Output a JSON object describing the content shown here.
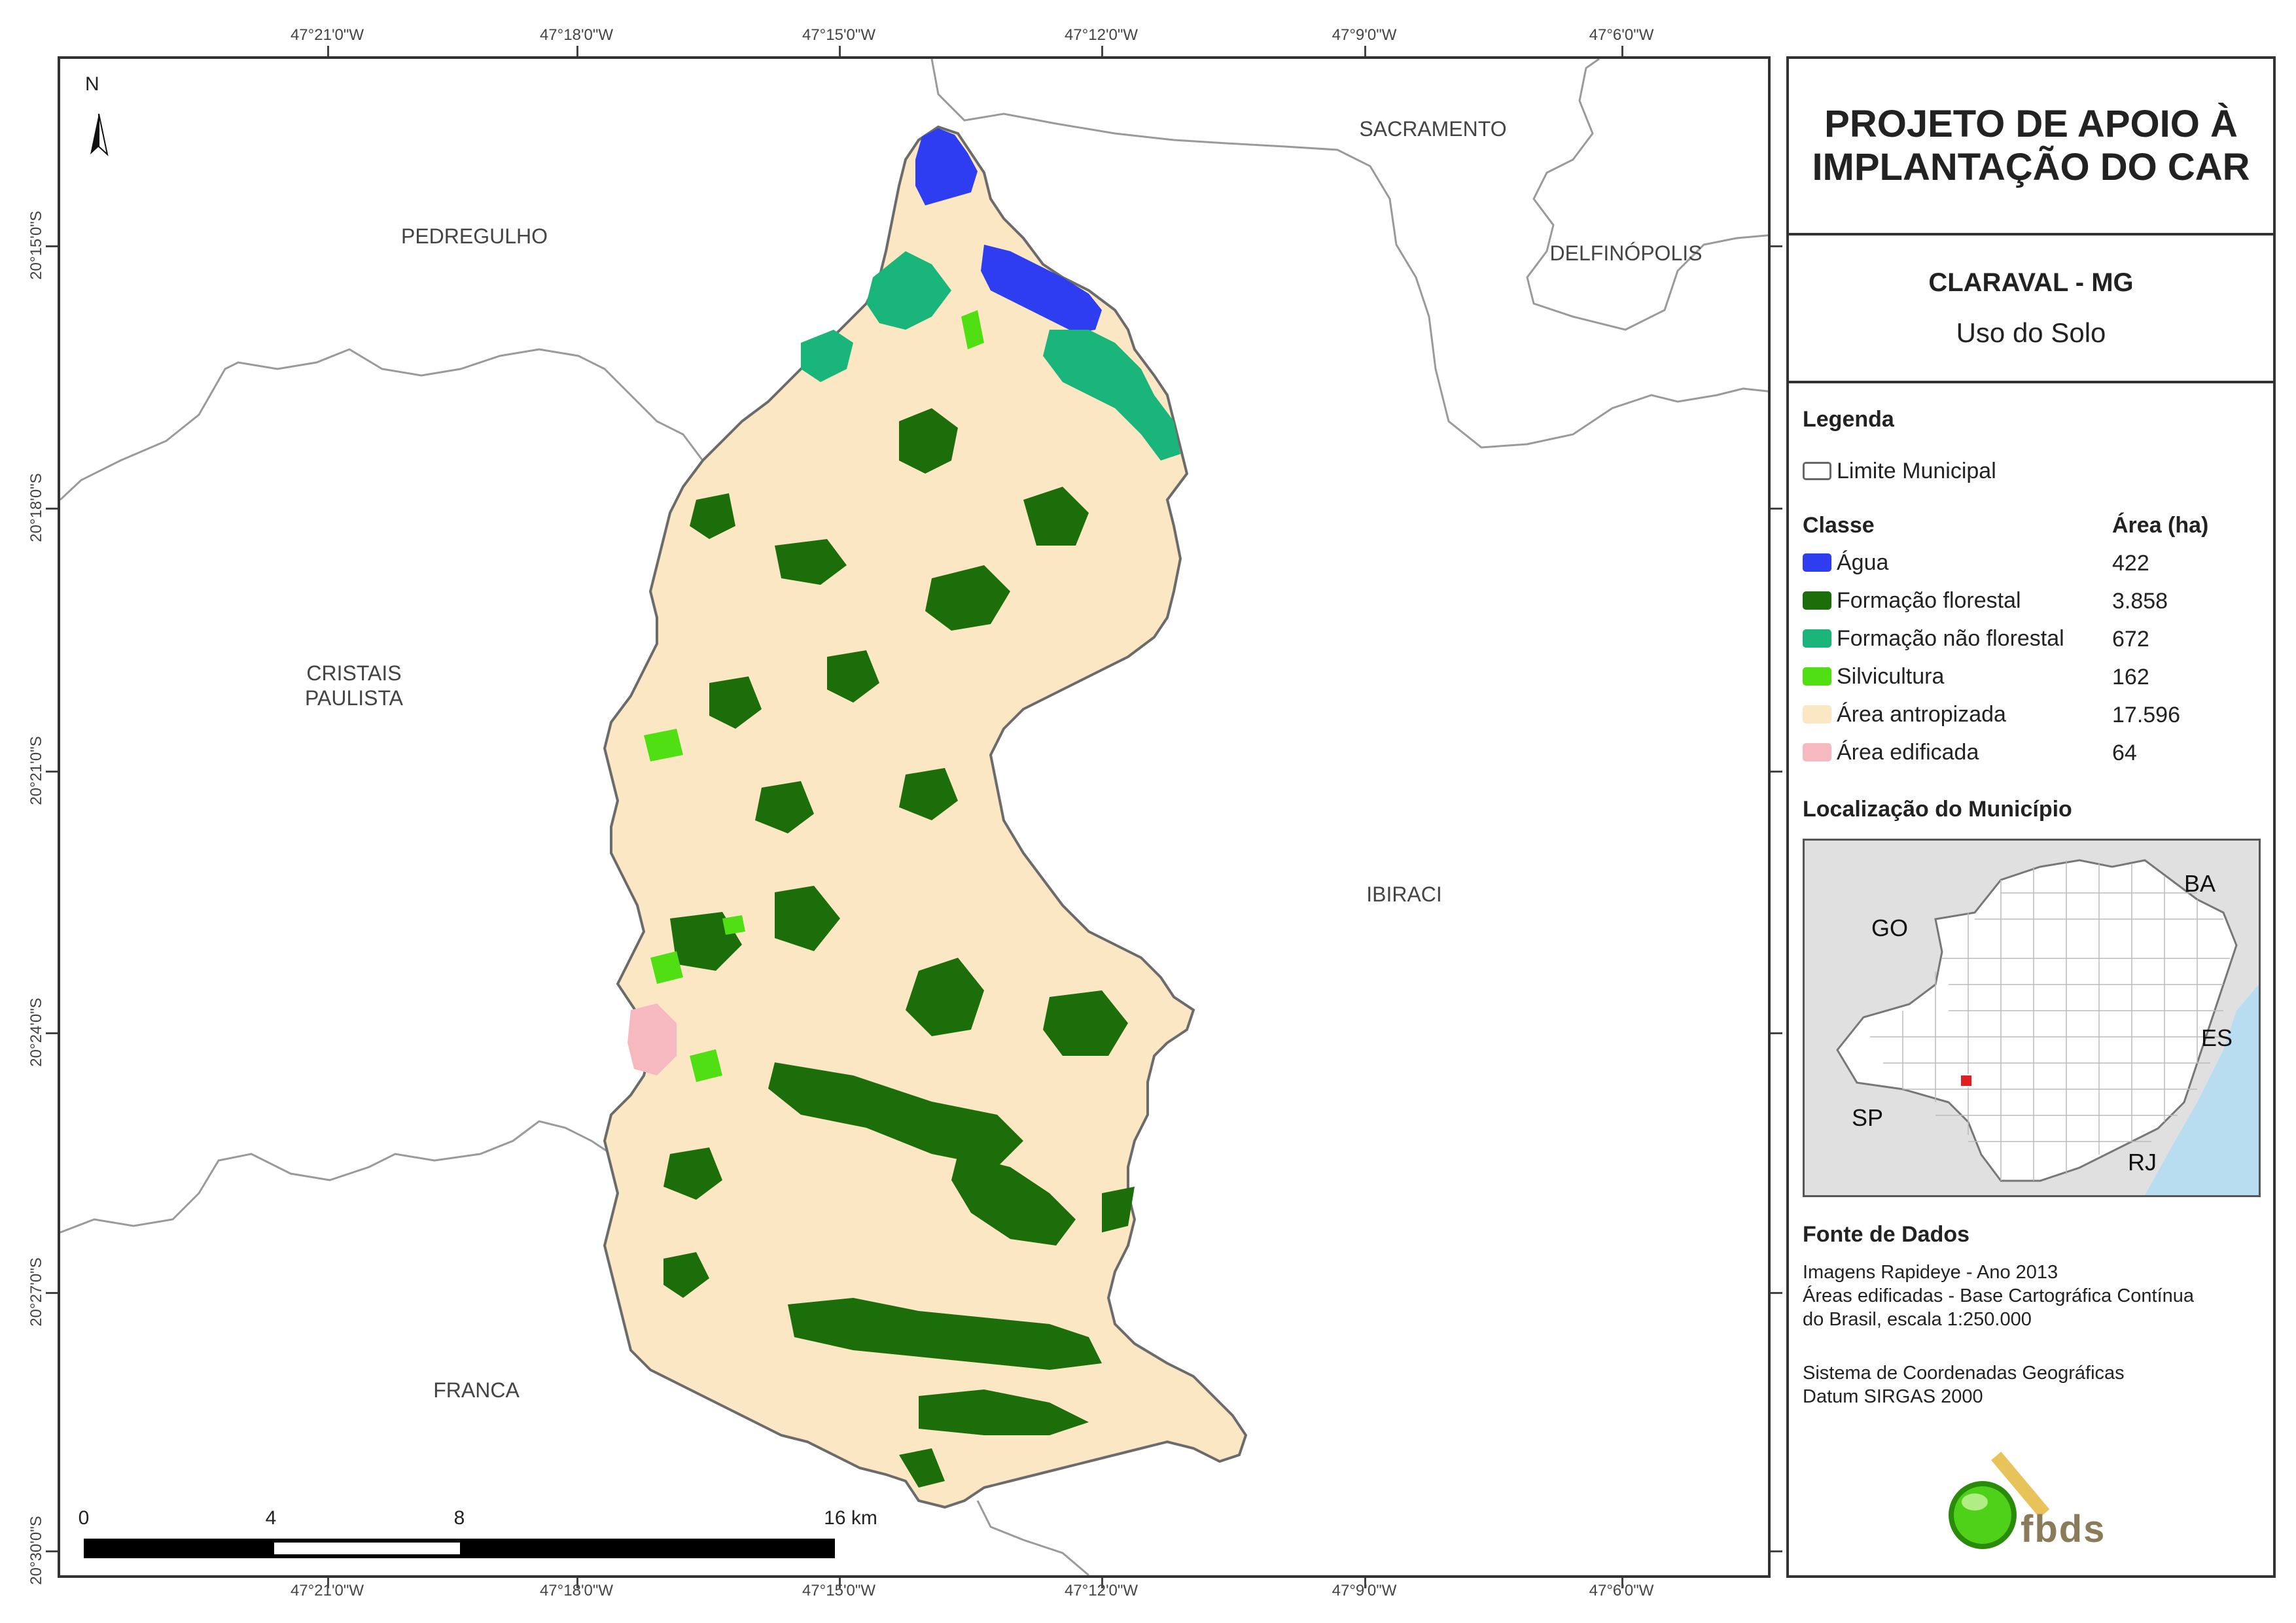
{
  "map": {
    "north_label": "N",
    "lon_labels": [
      "47°21'0\"W",
      "47°18'0\"W",
      "47°15'0\"W",
      "47°12'0\"W",
      "47°9'0\"W",
      "47°6'0\"W"
    ],
    "lat_labels": [
      "20°15'0\"S",
      "20°18'0\"S",
      "20°21'0\"S",
      "20°24'0\"S",
      "20°27'0\"S",
      "20°30'0\"S"
    ],
    "municipalities": {
      "sacramento": "SACRAMENTO",
      "pedregulho": "PEDREGULHO",
      "delfinopolis": "DELFINÓPOLIS",
      "cristais_1": "CRISTAIS",
      "cristais_2": "PAULISTA",
      "ibiraci": "IBIRACI",
      "franca": "FRANCA"
    },
    "scale": {
      "t0": "0",
      "t1": "4",
      "t2": "8",
      "t3": "16 km"
    }
  },
  "panel": {
    "title_1": "PROJETO DE APOIO À",
    "title_2": "IMPLANTAÇÃO DO CAR",
    "municipality": "CLARAVAL - MG",
    "theme": "Uso do Solo",
    "legend_heading": "Legenda",
    "boundary_label": "Limite Municipal",
    "class_heading": "Classe",
    "area_heading": "Área (ha)",
    "classes": [
      {
        "name": "Água",
        "area": "422",
        "color": "#2e3df0"
      },
      {
        "name": "Formação florestal",
        "area": "3.858",
        "color": "#1b6e0a"
      },
      {
        "name": "Formação não florestal",
        "area": "672",
        "color": "#19b57a"
      },
      {
        "name": "Silvicultura",
        "area": "162",
        "color": "#4fdf12"
      },
      {
        "name": "Área antropizada",
        "area": "17.596",
        "color": "#fbe7c4"
      },
      {
        "name": "Área edificada",
        "area": "64",
        "color": "#f6b9bf"
      }
    ],
    "location_heading": "Localização do Município",
    "inset_labels": {
      "ba": "BA",
      "go": "GO",
      "es": "ES",
      "sp": "SP",
      "rj": "RJ"
    },
    "source_heading": "Fonte de Dados",
    "source_1": "Imagens Rapideye - Ano 2013",
    "source_2": "Áreas edificadas - Base Cartográfica Contínua",
    "source_3": "do Brasil, escala 1:250.000",
    "source_4": "Sistema de Coordenadas Geográficas",
    "source_5": "Datum SIRGAS 2000",
    "logo_text": "fbds"
  }
}
